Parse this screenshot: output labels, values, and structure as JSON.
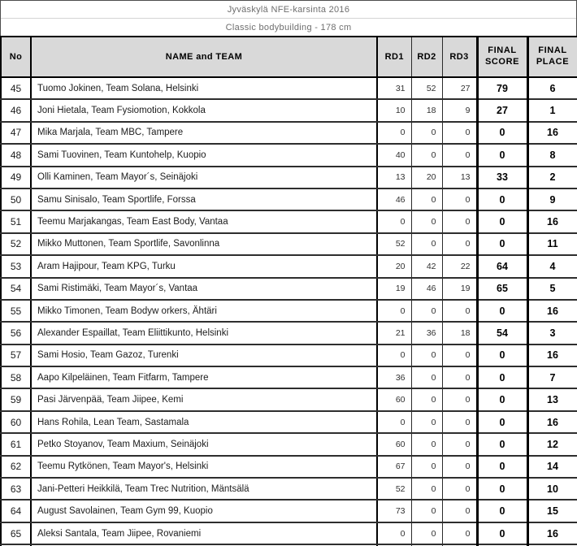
{
  "title": {
    "line1": "Jyväskylä NFE-karsinta 2016",
    "line2": "Classic bodybuilding - 178 cm"
  },
  "table": {
    "header": {
      "no": "No",
      "name": "NAME and TEAM",
      "rd1": "RD1",
      "rd2": "RD2",
      "rd3": "RD3",
      "final_score": "FINAL SCORE",
      "final_place": "FINAL PLACE"
    },
    "rows": [
      {
        "no": 45,
        "name": "Tuomo Jokinen, Team Solana, Helsinki",
        "rd1": 31,
        "rd2": 52,
        "rd3": 27,
        "final_score": 79,
        "final_place": 6
      },
      {
        "no": 46,
        "name": "Joni Hietala, Team Fysiomotion, Kokkola",
        "rd1": 10,
        "rd2": 18,
        "rd3": 9,
        "final_score": 27,
        "final_place": 1
      },
      {
        "no": 47,
        "name": "Mika Marjala, Team MBC, Tampere",
        "rd1": 0,
        "rd2": 0,
        "rd3": 0,
        "final_score": 0,
        "final_place": 16
      },
      {
        "no": 48,
        "name": "Sami Tuovinen, Team Kuntohelp, Kuopio",
        "rd1": 40,
        "rd2": 0,
        "rd3": 0,
        "final_score": 0,
        "final_place": 8
      },
      {
        "no": 49,
        "name": "Olli Kaminen, Team Mayor´s, Seinäjoki",
        "rd1": 13,
        "rd2": 20,
        "rd3": 13,
        "final_score": 33,
        "final_place": 2
      },
      {
        "no": 50,
        "name": "Samu Sinisalo, Team Sportlife, Forssa",
        "rd1": 46,
        "rd2": 0,
        "rd3": 0,
        "final_score": 0,
        "final_place": 9
      },
      {
        "no": 51,
        "name": "Teemu Marjakangas, Team East Body, Vantaa",
        "rd1": 0,
        "rd2": 0,
        "rd3": 0,
        "final_score": 0,
        "final_place": 16
      },
      {
        "no": 52,
        "name": "Mikko Muttonen, Team Sportlife, Savonlinna",
        "rd1": 52,
        "rd2": 0,
        "rd3": 0,
        "final_score": 0,
        "final_place": 11
      },
      {
        "no": 53,
        "name": "Aram Hajipour, Team KPG, Turku",
        "rd1": 20,
        "rd2": 42,
        "rd3": 22,
        "final_score": 64,
        "final_place": 4
      },
      {
        "no": 54,
        "name": "Sami Ristimäki, Team Mayor´s, Vantaa",
        "rd1": 19,
        "rd2": 46,
        "rd3": 19,
        "final_score": 65,
        "final_place": 5
      },
      {
        "no": 55,
        "name": "Mikko Timonen, Team Bodyw orkers, Ähtäri",
        "rd1": 0,
        "rd2": 0,
        "rd3": 0,
        "final_score": 0,
        "final_place": 16
      },
      {
        "no": 56,
        "name": "Alexander Espaillat, Team Eliittikunto, Helsinki",
        "rd1": 21,
        "rd2": 36,
        "rd3": 18,
        "final_score": 54,
        "final_place": 3
      },
      {
        "no": 57,
        "name": "Sami Hosio, Team Gazoz, Turenki",
        "rd1": 0,
        "rd2": 0,
        "rd3": 0,
        "final_score": 0,
        "final_place": 16
      },
      {
        "no": 58,
        "name": "Aapo Kilpeläinen, Team Fitfarm, Tampere",
        "rd1": 36,
        "rd2": 0,
        "rd3": 0,
        "final_score": 0,
        "final_place": 7
      },
      {
        "no": 59,
        "name": "Pasi Järvenpää, Team Jiipee, Kemi",
        "rd1": 60,
        "rd2": 0,
        "rd3": 0,
        "final_score": 0,
        "final_place": 13
      },
      {
        "no": 60,
        "name": "Hans Rohila, Lean Team, Sastamala",
        "rd1": 0,
        "rd2": 0,
        "rd3": 0,
        "final_score": 0,
        "final_place": 16
      },
      {
        "no": 61,
        "name": "Petko Stoyanov, Team Maxium, Seinäjoki",
        "rd1": 60,
        "rd2": 0,
        "rd3": 0,
        "final_score": 0,
        "final_place": 12
      },
      {
        "no": 62,
        "name": "Teemu Rytkönen, Team Mayor's, Helsinki",
        "rd1": 67,
        "rd2": 0,
        "rd3": 0,
        "final_score": 0,
        "final_place": 14
      },
      {
        "no": 63,
        "name": "Jani-Petteri Heikkilä, Team Trec Nutrition, Mäntsälä",
        "rd1": 52,
        "rd2": 0,
        "rd3": 0,
        "final_score": 0,
        "final_place": 10
      },
      {
        "no": 64,
        "name": "August Savolainen, Team Gym 99, Kuopio",
        "rd1": 73,
        "rd2": 0,
        "rd3": 0,
        "final_score": 0,
        "final_place": 15
      },
      {
        "no": 65,
        "name": "Aleksi Santala, Team Jiipee, Rovaniemi",
        "rd1": 0,
        "rd2": 0,
        "rd3": 0,
        "final_score": 0,
        "final_place": 16
      }
    ]
  },
  "colors": {
    "header_bg": "#d9d9d9",
    "border": "#000000",
    "title_text": "#6e6e6e"
  }
}
